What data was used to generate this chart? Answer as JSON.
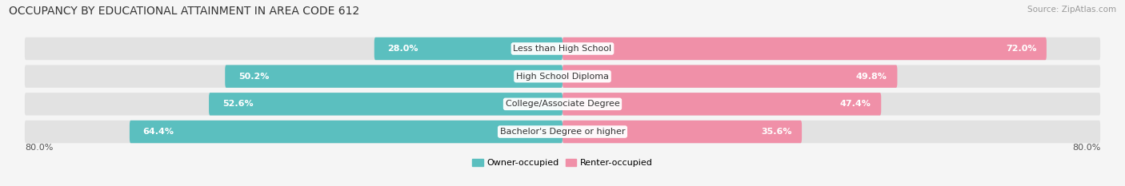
{
  "title": "OCCUPANCY BY EDUCATIONAL ATTAINMENT IN AREA CODE 612",
  "source": "Source: ZipAtlas.com",
  "categories": [
    "Less than High School",
    "High School Diploma",
    "College/Associate Degree",
    "Bachelor's Degree or higher"
  ],
  "owner_values": [
    28.0,
    50.2,
    52.6,
    64.4
  ],
  "renter_values": [
    72.0,
    49.8,
    47.4,
    35.6
  ],
  "owner_color": "#5bbfbf",
  "renter_color": "#f090a8",
  "background_color": "#f5f5f5",
  "bar_bg_color": "#e0e0e0",
  "x_range": 80.0,
  "x_axis_left_label": "80.0%",
  "x_axis_right_label": "80.0%",
  "legend_owner": "Owner-occupied",
  "legend_renter": "Renter-occupied",
  "title_fontsize": 10,
  "source_fontsize": 7.5,
  "label_fontsize": 8,
  "value_fontsize": 8,
  "bar_height": 0.82
}
